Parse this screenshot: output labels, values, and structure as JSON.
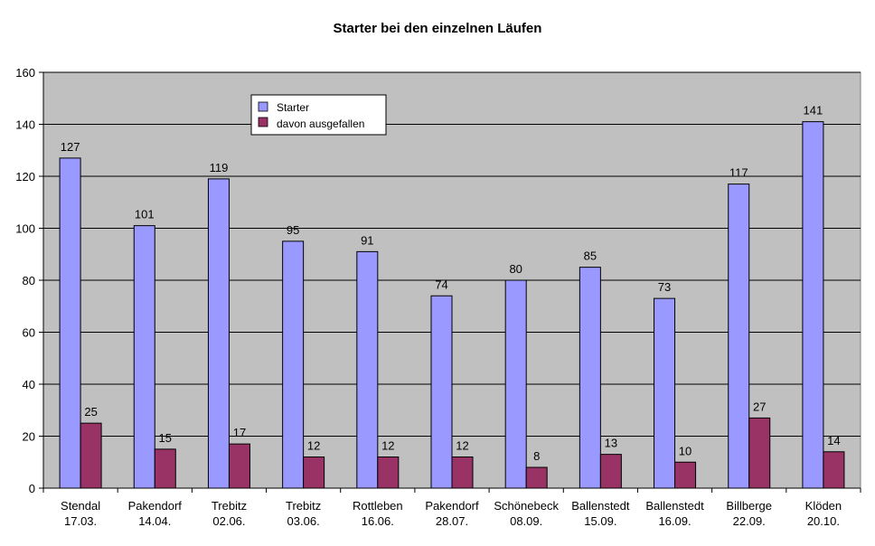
{
  "chart_data": {
    "type": "bar",
    "title": "Starter bei den einzelnen Läufen",
    "xlabel": "",
    "ylabel": "",
    "ylim": [
      0,
      160
    ],
    "yticks": [
      "0",
      "20",
      "40",
      "60",
      "80",
      "100",
      "120",
      "140",
      "160"
    ],
    "grid": true,
    "legend_position": "top-left",
    "categories": [
      [
        "Stendal",
        "17.03."
      ],
      [
        "Pakendorf",
        "14.04."
      ],
      [
        "Trebitz",
        "02.06."
      ],
      [
        "Trebitz",
        "03.06."
      ],
      [
        "Rottleben",
        "16.06."
      ],
      [
        "Pakendorf",
        "28.07."
      ],
      [
        "Schönebeck",
        "08.09."
      ],
      [
        "Ballenstedt",
        "15.09."
      ],
      [
        "Ballenstedt",
        "16.09."
      ],
      [
        "Billberge",
        "22.09."
      ],
      [
        "Klöden",
        "20.10."
      ]
    ],
    "series": [
      {
        "name": "Starter",
        "color": "#9999ff",
        "values": [
          127,
          101,
          119,
          95,
          91,
          74,
          80,
          85,
          73,
          117,
          141
        ]
      },
      {
        "name": "davon ausgefallen",
        "color": "#993366",
        "values": [
          25,
          15,
          17,
          12,
          12,
          12,
          8,
          13,
          10,
          27,
          14
        ]
      }
    ],
    "colors": {
      "plot_background": "#c0c0c0",
      "gridline": "#000000"
    }
  }
}
